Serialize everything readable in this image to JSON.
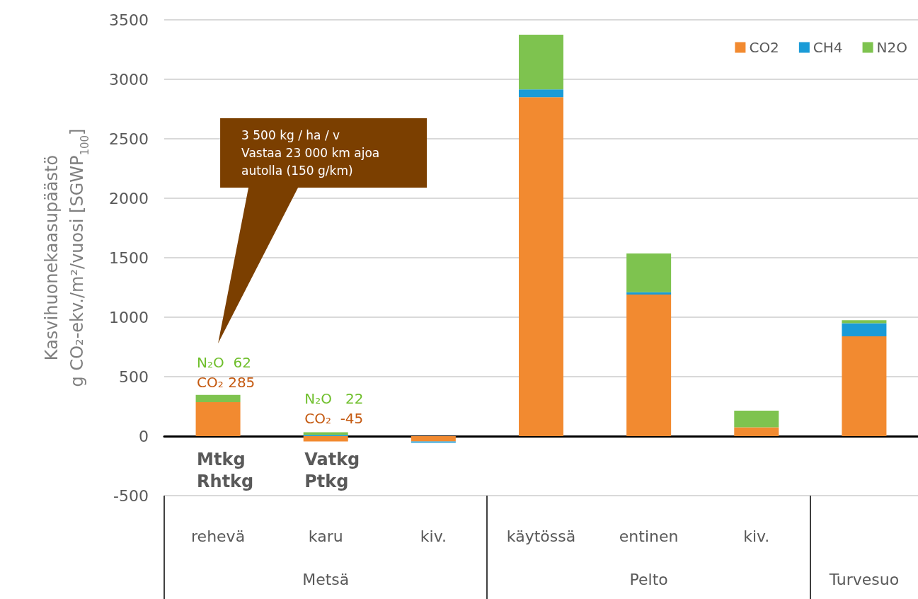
{
  "chart_data": {
    "type": "bar",
    "stacked": true,
    "ylabel": "Kasvihuonekaasupäästö\ng CO₂-ekv./m²/vuosi [SGWP$_{100}$]",
    "categories": [
      "rehevä",
      "karu",
      "kiv.",
      "käytössä",
      "entinen",
      "kiv.",
      null
    ],
    "series": [
      {
        "name": "CO2",
        "color": "#f28a30",
        "values": [
          285,
          -45,
          -45,
          2850,
          1190,
          75,
          840
        ]
      },
      {
        "name": "CH4",
        "color": "#1a9bd7",
        "values": [
          0,
          10,
          -10,
          65,
          20,
          0,
          110
        ]
      },
      {
        "name": "N2O",
        "color": "#7ec34f",
        "values": [
          62,
          22,
          0,
          460,
          325,
          140,
          25
        ]
      }
    ],
    "ylim": [
      -500,
      3500
    ],
    "yticks": [
      -500,
      0,
      500,
      1000,
      1500,
      2000,
      2500,
      3000,
      3500
    ],
    "grid": "y",
    "legend": "top right",
    "annotations": [
      "3 500 kg / ha / v\nVastaa 23 000 km ajoa\nautolla (150 g/km)",
      "N₂O  62",
      "CO₂ 285",
      "N₂O   22",
      "CO₂  -45",
      "Mtkg\nRhtkg",
      "Vatkg\nPtkg",
      "Metsä",
      "Pelto",
      "Turvesuo"
    ]
  }
}
